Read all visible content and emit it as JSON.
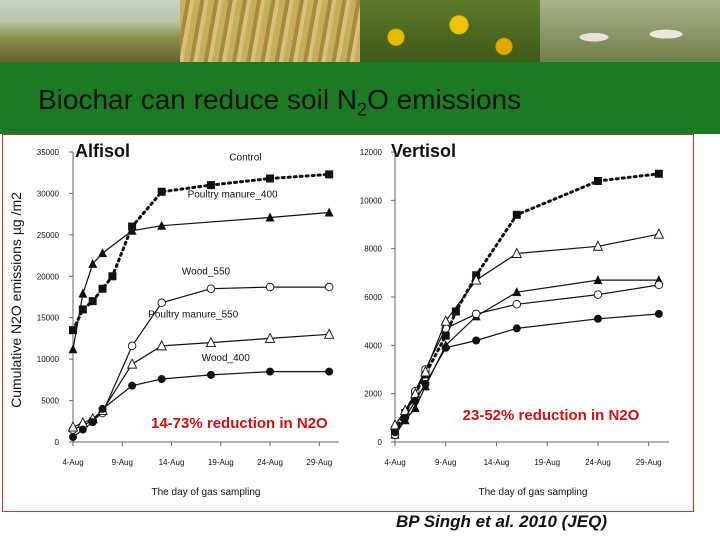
{
  "slide": {
    "title_pre": "Biochar can reduce soil N",
    "title_sub": "2",
    "title_post": "O emissions",
    "citation": "BP Singh et al. 2010 (JEQ)"
  },
  "chart_data": [
    {
      "type": "line",
      "title": "Alfisol",
      "xlabel": "The day of gas sampling",
      "ylabel": "Cumulative N2O emissions µg /m2",
      "x_ticks": [
        "4-Aug",
        "9-Aug",
        "14-Aug",
        "19-Aug",
        "24-Aug",
        "29-Aug"
      ],
      "y_ticks": [
        0,
        5000,
        10000,
        15000,
        20000,
        25000,
        30000,
        35000
      ],
      "ylim": [
        0,
        35000
      ],
      "xlim_days": [
        4,
        31
      ],
      "annotation": "14-73% reduction in N2O",
      "series": [
        {
          "name": "Control",
          "marker": "square",
          "line": "dotted",
          "label_day": 21.5,
          "label_y": 34000,
          "points": [
            [
              4,
              13500
            ],
            [
              5,
              16000
            ],
            [
              6,
              17000
            ],
            [
              7,
              18500
            ],
            [
              8,
              20000
            ],
            [
              10,
              26000
            ],
            [
              13,
              30200
            ],
            [
              18,
              31000
            ],
            [
              24,
              31800
            ],
            [
              30,
              32300
            ]
          ]
        },
        {
          "name": "Poultry manure_400",
          "marker": "triangle",
          "line": "solid",
          "label_day": 20.2,
          "label_y": 29500,
          "points": [
            [
              4,
              11200
            ],
            [
              5,
              17900
            ],
            [
              6,
              21500
            ],
            [
              7,
              22800
            ],
            [
              10,
              25500
            ],
            [
              13,
              26100
            ],
            [
              24,
              27100
            ],
            [
              30,
              27700
            ]
          ]
        },
        {
          "name": "Wood_550",
          "marker": "circle-open",
          "line": "solid",
          "label_day": 17.5,
          "label_y": 20200,
          "points": [
            [
              4,
              1500
            ],
            [
              5,
              2000
            ],
            [
              6,
              2600
            ],
            [
              7,
              3500
            ],
            [
              10,
              11600
            ],
            [
              13,
              16800
            ],
            [
              18,
              18500
            ],
            [
              24,
              18700
            ],
            [
              30,
              18700
            ]
          ]
        },
        {
          "name": "Poultry manure_550",
          "marker": "triangle-open",
          "line": "solid",
          "label_day": 16.2,
          "label_y": 15000,
          "points": [
            [
              4,
              1800
            ],
            [
              5,
              2300
            ],
            [
              6,
              2800
            ],
            [
              7,
              3800
            ],
            [
              10,
              9400
            ],
            [
              13,
              11600
            ],
            [
              18,
              12000
            ],
            [
              24,
              12500
            ],
            [
              30,
              13000
            ]
          ]
        },
        {
          "name": "Wood_400",
          "marker": "circle",
          "line": "solid",
          "label_day": 19.5,
          "label_y": 9800,
          "points": [
            [
              4,
              600
            ],
            [
              5,
              1500
            ],
            [
              6,
              2400
            ],
            [
              7,
              4000
            ],
            [
              10,
              6800
            ],
            [
              13,
              7600
            ],
            [
              18,
              8100
            ],
            [
              24,
              8500
            ],
            [
              30,
              8500
            ]
          ]
        }
      ]
    },
    {
      "type": "line",
      "title": "Vertisol",
      "xlabel": "The day of gas sampling",
      "ylabel": "",
      "x_ticks": [
        "4-Aug",
        "9-Aug",
        "14-Aug",
        "19-Aug",
        "24-Aug",
        "29-Aug"
      ],
      "y_ticks": [
        0,
        2000,
        4000,
        6000,
        8000,
        10000,
        12000
      ],
      "ylim": [
        0,
        12000
      ],
      "xlim_days": [
        4,
        31
      ],
      "annotation": "23-52% reduction in N2O",
      "series": [
        {
          "name": "Control",
          "marker": "square",
          "line": "dotted",
          "points": [
            [
              4,
              500
            ],
            [
              5,
              1200
            ],
            [
              6,
              2000
            ],
            [
              7,
              2800
            ],
            [
              9,
              4400
            ],
            [
              10,
              5400
            ],
            [
              12,
              6900
            ],
            [
              16,
              9400
            ],
            [
              24,
              10800
            ],
            [
              30,
              11100
            ]
          ]
        },
        {
          "name": "Poultry manure_400",
          "marker": "triangle",
          "line": "solid",
          "points": [
            [
              4,
              300
            ],
            [
              5,
              900
            ],
            [
              6,
              1400
            ],
            [
              7,
              2300
            ],
            [
              9,
              4000
            ],
            [
              12,
              5200
            ],
            [
              16,
              6200
            ],
            [
              24,
              6700
            ],
            [
              30,
              6700
            ]
          ]
        },
        {
          "name": "Wood_550",
          "marker": "circle-open",
          "line": "solid",
          "points": [
            [
              4,
              300
            ],
            [
              5,
              1100
            ],
            [
              6,
              2100
            ],
            [
              7,
              3000
            ],
            [
              9,
              4700
            ],
            [
              12,
              5300
            ],
            [
              16,
              5700
            ],
            [
              24,
              6100
            ],
            [
              30,
              6500
            ]
          ]
        },
        {
          "name": "Poultry manure_550",
          "marker": "triangle-open",
          "line": "solid",
          "points": [
            [
              4,
              700
            ],
            [
              5,
              1300
            ],
            [
              6,
              2000
            ],
            [
              7,
              2900
            ],
            [
              9,
              5000
            ],
            [
              12,
              6700
            ],
            [
              16,
              7800
            ],
            [
              24,
              8100
            ],
            [
              30,
              8600
            ]
          ]
        },
        {
          "name": "Wood_400",
          "marker": "circle",
          "line": "solid",
          "points": [
            [
              4,
              400
            ],
            [
              5,
              1000
            ],
            [
              6,
              1700
            ],
            [
              7,
              2400
            ],
            [
              9,
              3900
            ],
            [
              12,
              4200
            ],
            [
              16,
              4700
            ],
            [
              24,
              5100
            ],
            [
              30,
              5300
            ]
          ]
        }
      ]
    }
  ]
}
